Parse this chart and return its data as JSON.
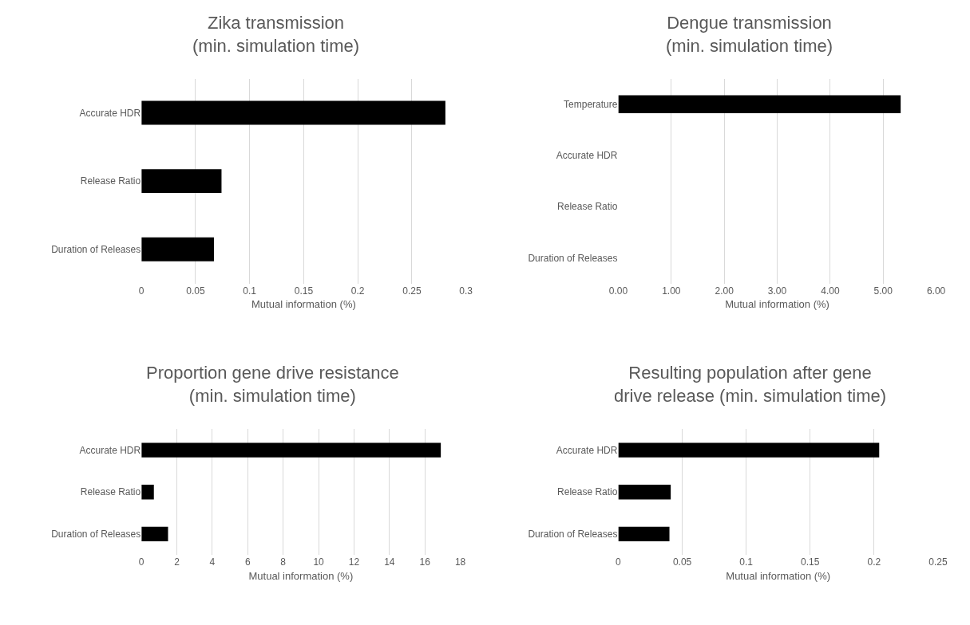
{
  "chart_data": [
    {
      "type": "bar",
      "orientation": "horizontal",
      "title": "Zika transmission\n(min. simulation time)",
      "xlabel": "Mutual information (%)",
      "categories": [
        "Accurate HDR",
        "Release Ratio",
        "Duration of Releases"
      ],
      "values": [
        0.281,
        0.074,
        0.067
      ],
      "color": "#000000",
      "xlim": [
        0,
        0.3
      ],
      "xticks": [
        0,
        0.05,
        0.1,
        0.15,
        0.2,
        0.25,
        0.3
      ],
      "grid": "x"
    },
    {
      "type": "bar",
      "orientation": "horizontal",
      "title": "Dengue transmission\n(min. simulation time)",
      "xlabel": "Mutual information (%)",
      "categories": [
        "Temperature",
        "Accurate HDR",
        "Release Ratio",
        "Duration of Releases"
      ],
      "values": [
        5.33,
        0,
        0,
        0
      ],
      "color": "#000000",
      "xlim": [
        0,
        6
      ],
      "xticks": [
        {
          "value": 0,
          "label": "0.00"
        },
        {
          "value": 1,
          "label": "1.00"
        },
        {
          "value": 2,
          "label": "2.00"
        },
        {
          "value": 3,
          "label": "3.00"
        },
        {
          "value": 4,
          "label": "4.00"
        },
        {
          "value": 5,
          "label": "5.00"
        },
        {
          "value": 6,
          "label": "6.00"
        }
      ],
      "grid": "x"
    },
    {
      "type": "bar",
      "orientation": "horizontal",
      "title": "Proportion gene drive resistance\n(min. simulation time)",
      "xlabel": "Mutual information (%)",
      "categories": [
        "Accurate HDR",
        "Release Ratio",
        "Duration of Releases"
      ],
      "values": [
        16.9,
        0.7,
        1.5
      ],
      "color": "#000000",
      "xlim": [
        0,
        18
      ],
      "xticks": [
        0,
        2,
        4,
        6,
        8,
        10,
        12,
        14,
        16,
        18
      ],
      "grid": "x"
    },
    {
      "type": "bar",
      "orientation": "horizontal",
      "title": "Resulting population after gene\ndrive release (min. simulation time)",
      "xlabel": "Mutual information (%)",
      "categories": [
        "Accurate HDR",
        "Release Ratio",
        "Duration of Releases"
      ],
      "values": [
        0.204,
        0.041,
        0.04
      ],
      "color": "#000000",
      "xlim": [
        0,
        0.25
      ],
      "xticks": [
        0,
        0.05,
        0.1,
        0.15,
        0.2,
        0.25
      ],
      "grid": "x"
    }
  ]
}
